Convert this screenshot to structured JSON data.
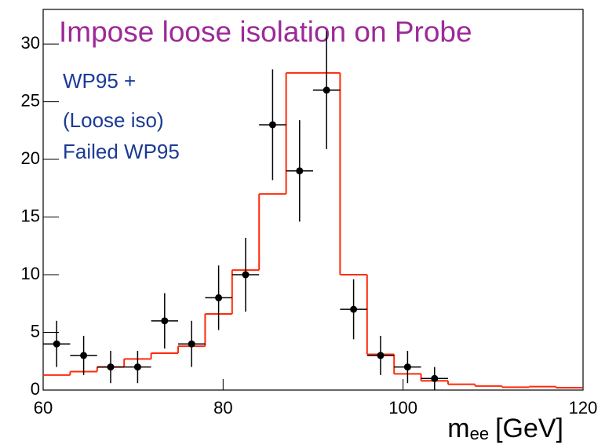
{
  "chart_data": {
    "type": "histogram",
    "title": "Impose loose isolation on Probe",
    "title_color": "#9c2a98",
    "annotations": [
      "WP95 +",
      "(Loose iso)",
      "Failed WP95"
    ],
    "annotation_color": "#1b3a94",
    "x_label": {
      "symbol": "m",
      "subscript": "ee",
      "unit": "[GeV]"
    },
    "xlim": [
      60,
      120
    ],
    "ylim": [
      0,
      33
    ],
    "xticks": [
      60,
      80,
      100,
      120
    ],
    "yticks": [
      0,
      5,
      10,
      15,
      20,
      25,
      30
    ],
    "bins": [
      60,
      63,
      66,
      69,
      72,
      75,
      78,
      81,
      84,
      87,
      90,
      93,
      96,
      99,
      102,
      105,
      108,
      111,
      114,
      117,
      120
    ],
    "counts": [
      1.3,
      1.6,
      2.0,
      2.7,
      3.2,
      3.8,
      6.6,
      10.4,
      17,
      27.5,
      27.5,
      10,
      3.1,
      1.4,
      0.8,
      0.5,
      0.35,
      0.25,
      0.3,
      0.2
    ],
    "color": "#ff2a0a",
    "points": {
      "x": [
        61.5,
        64.5,
        67.5,
        70.5,
        73.5,
        76.5,
        79.5,
        82.5,
        85.5,
        88.5,
        91.5,
        94.5,
        97.5,
        100.5,
        103.5
      ],
      "values": [
        4,
        3,
        2,
        2,
        6,
        4,
        8,
        10,
        23,
        19,
        26,
        7,
        3,
        2,
        1
      ],
      "errors": [
        2,
        1.7,
        1.4,
        1.4,
        2.4,
        2,
        2.8,
        3.2,
        4.8,
        4.4,
        5.1,
        2.6,
        1.7,
        1.4,
        1
      ],
      "x_error": 1.5,
      "color": "#000000"
    }
  }
}
